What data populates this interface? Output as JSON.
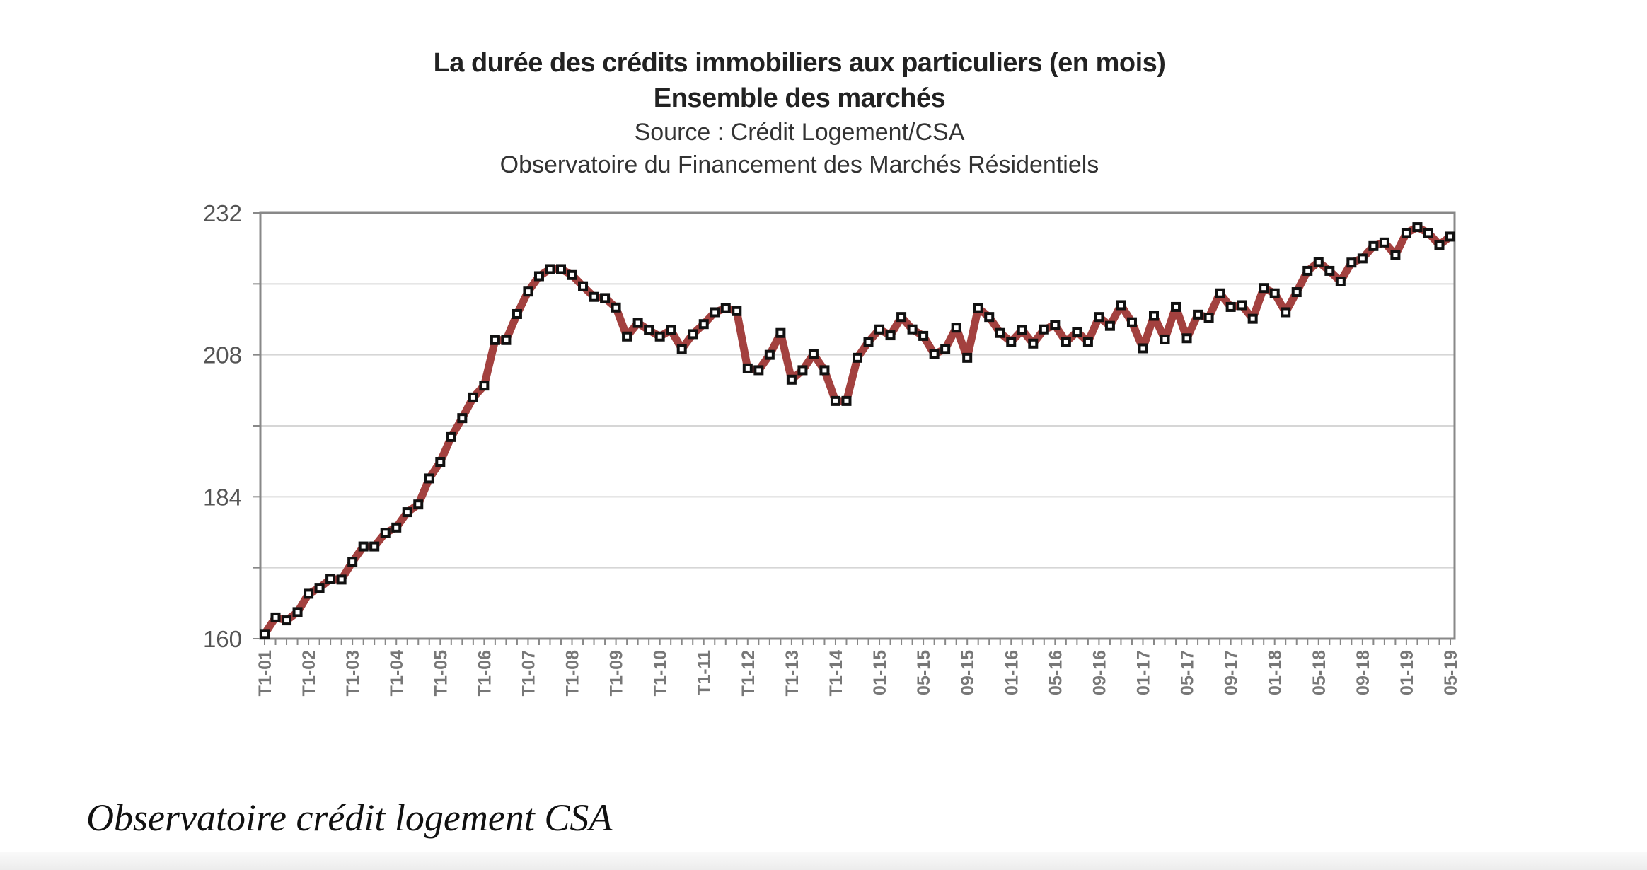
{
  "chart_data": {
    "type": "line",
    "title": "La durée des crédits immobiliers aux particuliers (en mois)",
    "subtitle": "Ensemble des marchés",
    "source": "Source : Crédit Logement/CSA",
    "source2": "Observatoire du Financement des Marchés Résidentiels",
    "xlabel": "",
    "ylabel": "",
    "ylim": [
      160,
      232
    ],
    "y_ticks": [
      160,
      184,
      208,
      232
    ],
    "grid": true,
    "legend": "none",
    "line_color": "#a3413f",
    "marker_color": "#111111",
    "x_tick_labels": [
      "T1-01",
      "T1-02",
      "T1-03",
      "T1-04",
      "T1-05",
      "T1-06",
      "T1-07",
      "T1-08",
      "T1-09",
      "T1-10",
      "T1-11",
      "T1-12",
      "T1-13",
      "T1-14",
      "01-15",
      "05-15",
      "09-15",
      "01-16",
      "05-16",
      "09-16",
      "01-17",
      "05-17",
      "09-17",
      "01-18",
      "05-18",
      "09-18",
      "01-19",
      "05-19"
    ],
    "values": [
      160.8,
      163.6,
      163.1,
      164.5,
      167.6,
      168.6,
      170.1,
      170.0,
      173.0,
      175.6,
      175.6,
      177.9,
      178.8,
      181.4,
      182.7,
      187.1,
      189.9,
      194.1,
      197.3,
      200.8,
      202.8,
      210.5,
      210.5,
      214.9,
      218.7,
      221.3,
      222.5,
      222.5,
      221.5,
      219.6,
      217.8,
      217.6,
      216.0,
      211.1,
      213.4,
      212.2,
      211.1,
      212.2,
      209.0,
      211.5,
      213.2,
      215.2,
      215.9,
      215.4,
      205.7,
      205.4,
      208.0,
      211.7,
      203.8,
      205.4,
      208.1,
      205.4,
      200.2,
      200.2,
      207.5,
      210.2,
      212.3,
      211.3,
      214.4,
      212.3,
      211.2,
      208.1,
      209.0,
      212.6,
      207.5,
      215.9,
      214.4,
      211.7,
      210.2,
      212.2,
      209.9,
      212.3,
      213.0,
      210.2,
      211.9,
      210.2,
      214.4,
      212.9,
      216.4,
      213.5,
      209.1,
      214.6,
      210.6,
      216.1,
      210.8,
      214.8,
      214.3,
      218.4,
      216.1,
      216.4,
      214.1,
      219.3,
      218.4,
      215.2,
      218.6,
      222.2,
      223.7,
      222.2,
      220.4,
      223.6,
      224.3,
      226.4,
      227.0,
      224.9,
      228.6,
      229.6,
      228.6,
      226.6,
      228.0
    ]
  },
  "caption": "Observatoire crédit logement CSA"
}
